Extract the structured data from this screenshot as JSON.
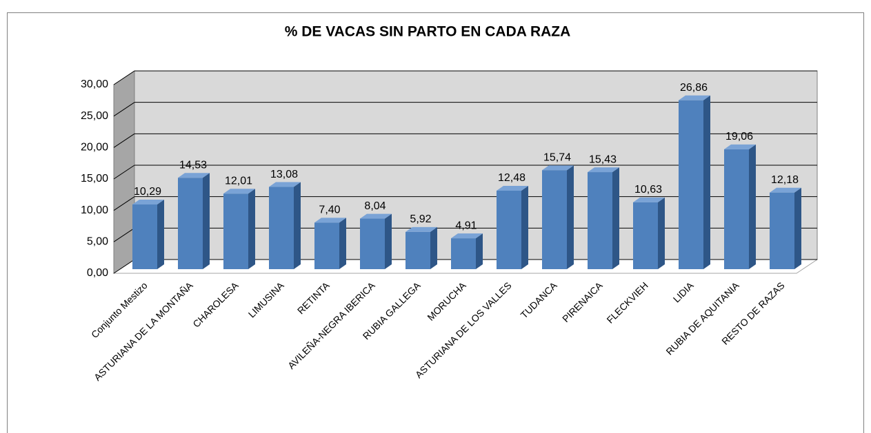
{
  "chart_data": {
    "type": "bar3d",
    "title": "% DE VACAS SIN PARTO EN CADA RAZA",
    "categories": [
      "Conjunto Mestizo",
      "ASTURIANA DE LA MONTAÑA",
      "CHAROLESA",
      "LIMUSINA",
      "RETINTA",
      "AVILEÑA-NEGRA IBERICA",
      "RUBIA GALLEGA",
      "MORUCHA",
      "ASTURIANA DE LOS VALLES",
      "TUDANCA",
      "PIRENAICA",
      "FLECKVIEH",
      "LIDIA",
      "RUBIA DE AQUITANIA",
      "RESTO DE RAZAS"
    ],
    "values": [
      10.29,
      14.53,
      12.01,
      13.08,
      7.4,
      8.04,
      5.92,
      4.91,
      12.48,
      15.74,
      15.43,
      10.63,
      26.86,
      19.06,
      12.18
    ],
    "value_labels": [
      "10,29",
      "14,53",
      "12,01",
      "13,08",
      "7,40",
      "8,04",
      "5,92",
      "4,91",
      "12,48",
      "15,74",
      "15,43",
      "10,63",
      "26,86",
      "19,06",
      "12,18"
    ],
    "color": "#4f81bd",
    "ylim": [
      0,
      30
    ],
    "yticks": [
      {
        "value": 0,
        "label": "0,00"
      },
      {
        "value": 5,
        "label": "5,00"
      },
      {
        "value": 10,
        "label": "10,00"
      },
      {
        "value": 15,
        "label": "15,00"
      },
      {
        "value": 20,
        "label": "20,00"
      },
      {
        "value": 25,
        "label": "25,00"
      },
      {
        "value": 30,
        "label": "30,00"
      }
    ],
    "grid": true
  }
}
